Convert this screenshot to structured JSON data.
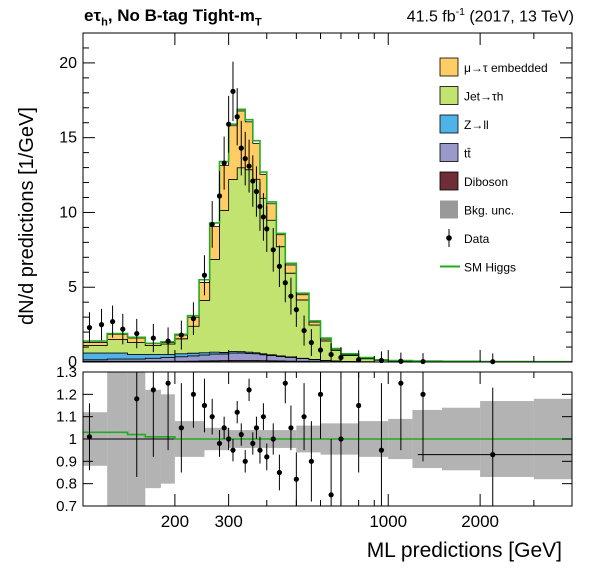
{
  "title": {
    "channel": "e",
    "tau": "τ",
    "sub": "h",
    "rest": ", No B-tag Tight-m",
    "sub2": "T"
  },
  "lumi": {
    "value": "41.5 fb",
    "sup": "-1",
    "rest": " (2017, 13 TeV)"
  },
  "colors": {
    "embedded": "#ffcc66",
    "jet": "#c2e370",
    "zll": "#4fb3e8",
    "tt": "#9999cc",
    "diboson": "#6f2d35",
    "unc": "#999999",
    "higgs": "#22aa22",
    "data": "#000000"
  },
  "chart_data": [
    {
      "type": "area",
      "panel": "main",
      "xscale": "log",
      "xlim": [
        100,
        4000
      ],
      "ylim": [
        0,
        22
      ],
      "ylabel": "dN/d predictions [1/GeV]",
      "yticks": [
        "0",
        "5",
        "10",
        "15",
        "20"
      ],
      "x": [
        100,
        120,
        140,
        160,
        180,
        200,
        220,
        240,
        260,
        280,
        300,
        320,
        340,
        360,
        380,
        400,
        430,
        460,
        500,
        550,
        600,
        650,
        700,
        800,
        900,
        1000,
        1200,
        1500,
        2000,
        3000,
        4000
      ],
      "series": [
        {
          "name": "μ→τ embedded",
          "values": [
            0.2,
            0.35,
            0.3,
            0.15,
            0.1,
            0.25,
            0.6,
            1.2,
            2.2,
            3.0,
            3.6,
            3.8,
            3.2,
            2.4,
            1.6,
            1.1,
            0.8,
            0.55,
            0.35,
            0.2,
            0.12,
            0.08,
            0.05,
            0.03,
            0.02,
            0.01,
            0.0,
            0.0,
            0.0,
            0.0,
            0.0
          ]
        },
        {
          "name": "Jet→τh",
          "values": [
            0.5,
            0.9,
            0.8,
            0.6,
            0.7,
            1.0,
            1.8,
            3.5,
            6.2,
            9.5,
            11.5,
            12.3,
            12.2,
            11.6,
            10.4,
            9.0,
            7.3,
            5.6,
            3.9,
            2.3,
            1.3,
            0.7,
            0.4,
            0.2,
            0.1,
            0.06,
            0.04,
            0.03,
            0.02,
            0.01,
            0.0
          ]
        },
        {
          "name": "Z→ll",
          "values": [
            0.45,
            0.4,
            0.3,
            0.25,
            0.2,
            0.2,
            0.18,
            0.15,
            0.13,
            0.1,
            0.1,
            0.09,
            0.08,
            0.07,
            0.06,
            0.05,
            0.04,
            0.03,
            0.02,
            0.02,
            0.01,
            0.01,
            0.0,
            0.0,
            0.0,
            0.0,
            0.0,
            0.0,
            0.0,
            0.0,
            0.0
          ]
        },
        {
          "name": "tt̄",
          "values": [
            0.1,
            0.15,
            0.15,
            0.2,
            0.25,
            0.3,
            0.35,
            0.4,
            0.45,
            0.45,
            0.5,
            0.5,
            0.48,
            0.45,
            0.4,
            0.35,
            0.3,
            0.25,
            0.18,
            0.12,
            0.08,
            0.05,
            0.03,
            0.02,
            0.01,
            0.01,
            0.0,
            0.0,
            0.0,
            0.0,
            0.0
          ]
        },
        {
          "name": "Diboson",
          "values": [
            0.05,
            0.05,
            0.05,
            0.05,
            0.05,
            0.05,
            0.06,
            0.07,
            0.08,
            0.09,
            0.1,
            0.1,
            0.1,
            0.1,
            0.09,
            0.08,
            0.07,
            0.06,
            0.05,
            0.03,
            0.02,
            0.01,
            0.01,
            0.0,
            0.0,
            0.0,
            0.0,
            0.0,
            0.0,
            0.0,
            0.0
          ]
        }
      ],
      "sm_higgs": [
        1.4,
        1.9,
        1.65,
        1.25,
        1.35,
        1.85,
        3.1,
        5.5,
        9.3,
        13.4,
        15.9,
        16.9,
        16.2,
        14.8,
        12.7,
        10.7,
        8.6,
        6.6,
        4.6,
        2.75,
        1.6,
        0.9,
        0.55,
        0.3,
        0.15,
        0.1,
        0.06,
        0.05,
        0.03,
        0.02,
        0.01
      ],
      "data_points": {
        "x": [
          105,
          115,
          125,
          135,
          150,
          170,
          190,
          210,
          230,
          250,
          265,
          280,
          290,
          300,
          310,
          320,
          330,
          340,
          350,
          360,
          370,
          380,
          390,
          400,
          420,
          440,
          460,
          480,
          500,
          530,
          560,
          600,
          650,
          700,
          800,
          950,
          1100,
          1300,
          2200
        ],
        "y": [
          2.3,
          2.5,
          2.7,
          2.2,
          1.9,
          1.6,
          1.4,
          1.8,
          2.9,
          5.8,
          9.2,
          11.1,
          13.3,
          15.9,
          18.1,
          16.4,
          14.3,
          13.6,
          13.1,
          12.1,
          11.4,
          10.4,
          9.7,
          8.9,
          7.5,
          6.4,
          5.3,
          4.4,
          3.5,
          2.1,
          1.3,
          0.8,
          0.5,
          0.3,
          0.15,
          0.1,
          0.05,
          0.03,
          0.02
        ]
      },
      "legend": [
        "μ→τ embedded",
        "Jet→τh",
        "Z→ll",
        "tt̄",
        "Diboson",
        "Bkg. unc.",
        "Data",
        "SM Higgs"
      ],
      "legend_position": "top-right"
    },
    {
      "type": "scatter",
      "panel": "ratio",
      "xscale": "log",
      "xlim": [
        100,
        4000
      ],
      "ylim": [
        0.7,
        1.3
      ],
      "xlabel": "ML predictions [GeV]",
      "xticks": [
        "200",
        "300",
        "1000",
        "2000"
      ],
      "yticks": [
        "0.7",
        "0.8",
        "0.9",
        "1",
        "1.1",
        "1.2",
        "1.3"
      ],
      "unc_band": {
        "x": [
          100,
          120,
          140,
          160,
          180,
          200,
          250,
          300,
          400,
          500,
          600,
          800,
          1000,
          1200,
          1500,
          2000,
          3000,
          4000
        ],
        "low": [
          0.88,
          0.7,
          0.7,
          0.78,
          0.8,
          0.92,
          0.95,
          0.96,
          0.96,
          0.94,
          0.93,
          0.92,
          0.91,
          0.87,
          0.86,
          0.83,
          0.82,
          0.82
        ],
        "high": [
          1.12,
          1.3,
          1.3,
          1.22,
          1.2,
          1.08,
          1.05,
          1.04,
          1.04,
          1.06,
          1.07,
          1.08,
          1.09,
          1.13,
          1.14,
          1.17,
          1.18,
          1.18
        ]
      },
      "sm_higgs_ratio": [
        1.03,
        1.03,
        1.02,
        1.01,
        1.01,
        1.0,
        1.0,
        1.0,
        1.0,
        1.0,
        1.0,
        1.0,
        1.0,
        1.0,
        1.0,
        1.0,
        1.0,
        1.0
      ],
      "data_points": {
        "x": [
          105,
          150,
          170,
          190,
          210,
          230,
          250,
          265,
          280,
          290,
          300,
          310,
          320,
          330,
          340,
          350,
          360,
          370,
          380,
          390,
          400,
          420,
          440,
          460,
          480,
          500,
          530,
          560,
          600,
          650,
          700,
          800,
          950,
          1100,
          1300,
          2200
        ],
        "y": [
          1.01,
          1.18,
          1.22,
          1.25,
          1.05,
          1.2,
          1.15,
          1.1,
          0.98,
          1.05,
          1.0,
          0.95,
          1.12,
          1.02,
          0.9,
          1.22,
          0.98,
          1.05,
          0.95,
          1.1,
          0.92,
          1.0,
          0.85,
          1.25,
          1.05,
          0.82,
          1.1,
          0.9,
          1.2,
          0.75,
          1.0,
          1.15,
          0.95,
          1.25,
          1.2,
          0.93
        ],
        "err": [
          0.15,
          0.35,
          0.3,
          0.3,
          0.2,
          0.15,
          0.12,
          0.08,
          0.06,
          0.05,
          0.05,
          0.05,
          0.05,
          0.05,
          0.05,
          0.05,
          0.05,
          0.05,
          0.06,
          0.06,
          0.06,
          0.07,
          0.08,
          0.09,
          0.1,
          0.12,
          0.15,
          0.18,
          0.2,
          0.25,
          0.3,
          0.3,
          0.3,
          0.3,
          0.3,
          0.3
        ]
      }
    }
  ]
}
